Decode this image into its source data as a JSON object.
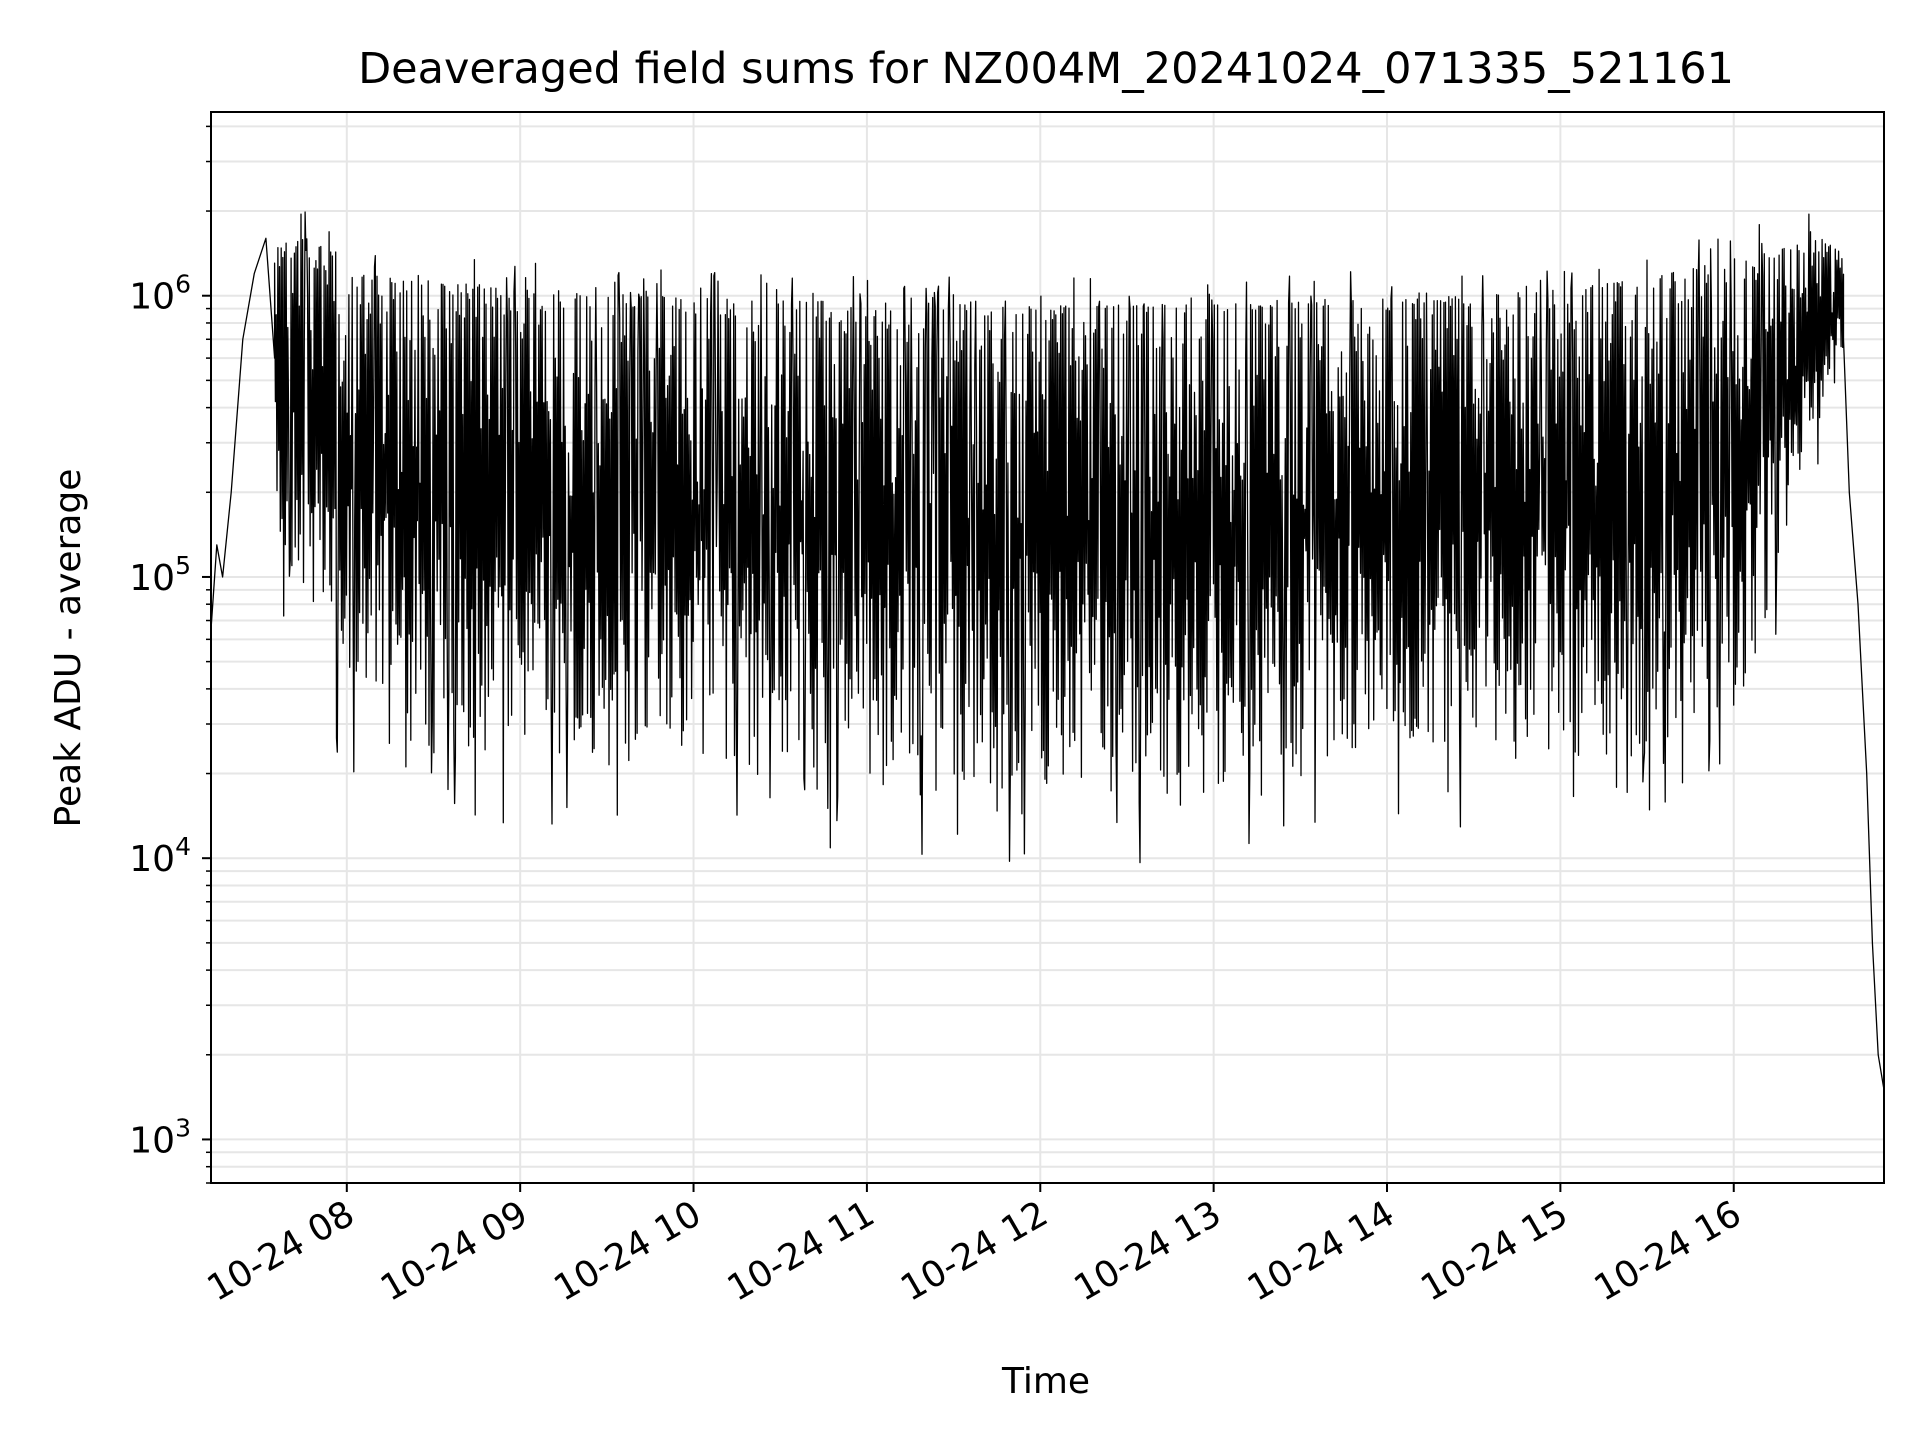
{
  "chart_data": {
    "type": "line",
    "title": "Deaveraged field sums for NZ004M_20241024_071335_521161",
    "xlabel": "Time",
    "ylabel": "Peak ADU - average",
    "yscale": "log",
    "ylim": [
      700,
      4500000
    ],
    "xlim": [
      "2024-10-24 07:13",
      "2024-10-24 16:52"
    ],
    "x_ticks": [
      {
        "time": "2024-10-24 08:00",
        "label": "10-24 08"
      },
      {
        "time": "2024-10-24 09:00",
        "label": "10-24 09"
      },
      {
        "time": "2024-10-24 10:00",
        "label": "10-24 10"
      },
      {
        "time": "2024-10-24 11:00",
        "label": "10-24 11"
      },
      {
        "time": "2024-10-24 12:00",
        "label": "10-24 12"
      },
      {
        "time": "2024-10-24 13:00",
        "label": "10-24 13"
      },
      {
        "time": "2024-10-24 14:00",
        "label": "10-24 14"
      },
      {
        "time": "2024-10-24 15:00",
        "label": "10-24 15"
      },
      {
        "time": "2024-10-24 16:00",
        "label": "10-24 16"
      }
    ],
    "y_ticks": [
      {
        "value": 1000,
        "base": "10",
        "exp": "3"
      },
      {
        "value": 10000,
        "base": "10",
        "exp": "4"
      },
      {
        "value": 100000,
        "base": "10",
        "exp": "5"
      },
      {
        "value": 1000000,
        "base": "10",
        "exp": "6"
      }
    ],
    "grid": true,
    "line_color": "#000000",
    "grid_color": "#e6e6e6",
    "series": [
      {
        "x": [
          "2024-10-24 07:13",
          "2024-10-24 07:15",
          "2024-10-24 07:17",
          "2024-10-24 07:20",
          "2024-10-24 07:24",
          "2024-10-24 07:28",
          "2024-10-24 07:32",
          "2024-10-24 07:35"
        ],
        "values": [
          65000,
          130000,
          100000,
          200000,
          700000,
          1200000,
          1600000,
          600000
        ]
      },
      {
        "x": [
          "2024-10-24 07:35",
          "2024-10-24 07:45",
          "2024-10-24 07:55",
          "2024-10-24 08:05",
          "2024-10-24 08:15",
          "2024-10-24 08:30",
          "2024-10-24 08:45",
          "2024-10-24 09:00",
          "2024-10-24 09:30",
          "2024-10-24 10:00",
          "2024-10-24 10:30",
          "2024-10-24 11:00",
          "2024-10-24 11:30",
          "2024-10-24 12:00",
          "2024-10-24 12:30",
          "2024-10-24 13:00",
          "2024-10-24 13:30",
          "2024-10-24 14:00",
          "2024-10-24 14:30",
          "2024-10-24 15:00",
          "2024-10-24 15:30",
          "2024-10-24 16:00",
          "2024-10-24 16:15",
          "2024-10-24 16:30",
          "2024-10-24 16:38"
        ],
        "upper": [
          1500000,
          1600000,
          1500000,
          1200000,
          1150000,
          1100000,
          1100000,
          1050000,
          1000000,
          980000,
          960000,
          950000,
          930000,
          920000,
          920000,
          930000,
          950000,
          980000,
          1000000,
          1050000,
          1150000,
          1350000,
          1500000,
          1600000,
          1400000
        ],
        "lower": [
          150000,
          80000,
          45000,
          30000,
          25000,
          23000,
          22000,
          22000,
          21000,
          20000,
          19000,
          18000,
          17000,
          17000,
          16000,
          17000,
          20000,
          22000,
          22000,
          22000,
          23000,
          30000,
          80000,
          300000,
          600000
        ]
      },
      {
        "x": [
          "2024-10-24 16:38",
          "2024-10-24 16:40",
          "2024-10-24 16:43",
          "2024-10-24 16:46",
          "2024-10-24 16:48",
          "2024-10-24 16:50",
          "2024-10-24 16:52"
        ],
        "values": [
          700000,
          200000,
          80000,
          20000,
          5000,
          2000,
          1500
        ]
      }
    ]
  }
}
